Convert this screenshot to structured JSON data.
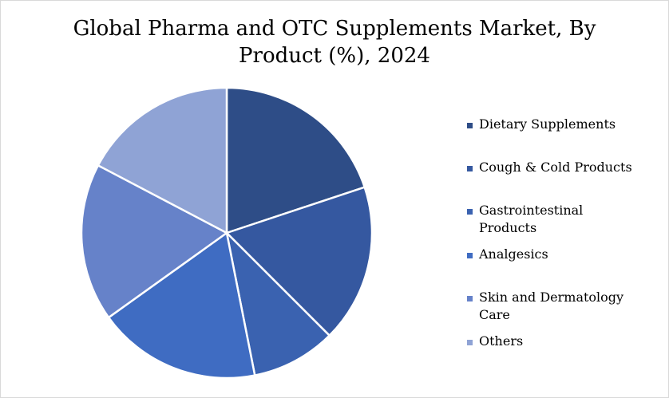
{
  "chart_data": {
    "type": "pie",
    "title": "Global Pharma and OTC Supplements Market, By Product (%), 2024",
    "title_lines": [
      "Global Pharma and OTC Supplements Market, By",
      "Product (%), 2024"
    ],
    "legend_position": "right",
    "series": [
      {
        "name": "Dietary Supplements",
        "value": 19.9,
        "color": "#2e4d87"
      },
      {
        "name": "Cough & Cold Products",
        "value": 17.6,
        "color": "#3558a0"
      },
      {
        "name": "Gastrointestinal Products",
        "value": 9.4,
        "color": "#3a62b0"
      },
      {
        "name": "Analgesics",
        "value": 18.2,
        "color": "#3f6cc2"
      },
      {
        "name": "Skin and Dermatology Care",
        "value": 17.6,
        "color": "#6682c9"
      },
      {
        "name": "Others",
        "value": 17.3,
        "color": "#8fa3d5"
      }
    ]
  }
}
